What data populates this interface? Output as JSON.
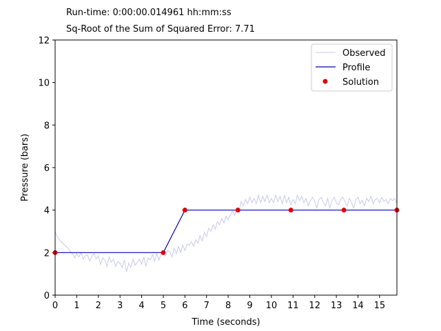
{
  "header": {
    "runtime": "Run-time: 0:00:00.014961 hh:mm:ss",
    "error": "Sq-Root of the Sum of Squared Error: 7.71"
  },
  "chart_data": {
    "type": "line",
    "xlabel": "Time (seconds)",
    "ylabel": "Pressure (bars)",
    "xlim": [
      0,
      15.8
    ],
    "ylim": [
      0,
      12
    ],
    "xticks": [
      0,
      1,
      2,
      3,
      4,
      5,
      6,
      7,
      8,
      9,
      10,
      11,
      12,
      13,
      14,
      15
    ],
    "yticks": [
      0,
      2,
      4,
      6,
      8,
      10,
      12
    ],
    "grid": false,
    "legend_position": "top-right",
    "series": [
      {
        "name": "Observed",
        "style": "line",
        "color": "#c8c8f0",
        "x": [
          0,
          0.1,
          0.2,
          0.3,
          0.4,
          0.5,
          0.6,
          0.7,
          0.8,
          0.9,
          1.0,
          1.1,
          1.2,
          1.3,
          1.4,
          1.5,
          1.6,
          1.7,
          1.8,
          1.9,
          2.0,
          2.1,
          2.2,
          2.3,
          2.4,
          2.5,
          2.6,
          2.7,
          2.8,
          2.9,
          3.0,
          3.1,
          3.2,
          3.3,
          3.4,
          3.5,
          3.6,
          3.7,
          3.8,
          3.9,
          4.0,
          4.1,
          4.2,
          4.3,
          4.4,
          4.5,
          4.6,
          4.7,
          4.8,
          4.9,
          5.0,
          5.1,
          5.2,
          5.3,
          5.4,
          5.5,
          5.6,
          5.7,
          5.8,
          5.9,
          6.0,
          6.1,
          6.2,
          6.3,
          6.4,
          6.5,
          6.6,
          6.7,
          6.8,
          6.9,
          7.0,
          7.1,
          7.2,
          7.3,
          7.4,
          7.5,
          7.6,
          7.7,
          7.8,
          7.9,
          8.0,
          8.1,
          8.2,
          8.3,
          8.4,
          8.5,
          8.6,
          8.7,
          8.8,
          8.9,
          9.0,
          9.1,
          9.2,
          9.3,
          9.4,
          9.5,
          9.6,
          9.7,
          9.8,
          9.9,
          10.0,
          10.1,
          10.2,
          10.3,
          10.4,
          10.5,
          10.6,
          10.7,
          10.8,
          10.9,
          11.0,
          11.1,
          11.2,
          11.3,
          11.4,
          11.5,
          11.6,
          11.7,
          11.8,
          11.9,
          12.0,
          12.1,
          12.2,
          12.3,
          12.4,
          12.5,
          12.6,
          12.7,
          12.8,
          12.9,
          13.0,
          13.1,
          13.2,
          13.3,
          13.4,
          13.5,
          13.6,
          13.7,
          13.8,
          13.9,
          14.0,
          14.1,
          14.2,
          14.3,
          14.4,
          14.5,
          14.6,
          14.7,
          14.8,
          14.9,
          15.0,
          15.1,
          15.2,
          15.3,
          15.4,
          15.5,
          15.6,
          15.7,
          15.8
        ],
        "y": [
          3.0,
          2.75,
          2.6,
          2.5,
          2.4,
          2.3,
          2.2,
          2.05,
          1.95,
          1.75,
          1.95,
          1.8,
          2.0,
          1.7,
          1.85,
          1.9,
          1.6,
          1.85,
          1.95,
          1.7,
          1.85,
          1.45,
          1.75,
          1.65,
          1.35,
          1.8,
          1.55,
          1.7,
          1.35,
          1.6,
          1.5,
          1.3,
          1.65,
          1.1,
          1.5,
          1.3,
          1.7,
          1.4,
          1.55,
          1.7,
          1.45,
          1.8,
          1.35,
          1.75,
          1.65,
          1.9,
          1.6,
          1.95,
          1.65,
          1.95,
          2.0,
          1.85,
          2.1,
          2.05,
          1.8,
          2.2,
          1.95,
          2.3,
          2.0,
          2.35,
          2.1,
          2.4,
          2.35,
          2.5,
          2.3,
          2.6,
          2.45,
          2.8,
          2.55,
          2.95,
          2.75,
          3.15,
          3.0,
          3.3,
          3.1,
          3.45,
          3.3,
          3.6,
          3.4,
          3.7,
          3.55,
          3.75,
          3.95,
          3.75,
          4.1,
          3.95,
          4.4,
          4.2,
          4.5,
          4.3,
          4.6,
          4.35,
          4.55,
          4.3,
          4.7,
          4.35,
          4.65,
          4.4,
          4.7,
          4.35,
          4.55,
          4.35,
          4.7,
          4.4,
          4.65,
          4.3,
          4.7,
          4.35,
          4.6,
          4.25,
          4.5,
          4.3,
          4.7,
          4.45,
          4.65,
          4.35,
          4.55,
          4.2,
          4.45,
          4.6,
          4.4,
          4.1,
          4.5,
          4.6,
          4.35,
          4.2,
          4.55,
          4.1,
          4.45,
          4.6,
          4.35,
          4.25,
          4.5,
          4.6,
          4.4,
          4.2,
          4.55,
          4.35,
          4.1,
          4.5,
          4.6,
          4.3,
          4.45,
          4.2,
          4.55,
          4.4,
          4.65,
          4.3,
          4.5,
          4.55,
          4.35,
          4.6,
          4.4,
          4.5,
          4.3,
          4.55,
          4.45,
          4.55,
          4.3
        ]
      },
      {
        "name": "Profile",
        "style": "line",
        "color": "#0000bb",
        "x": [
          0,
          5.0,
          6.0,
          8.45,
          10.9,
          13.35,
          15.8
        ],
        "y": [
          2,
          2,
          4,
          4,
          4,
          4,
          4
        ]
      },
      {
        "name": "Solution",
        "style": "scatter",
        "color": "#e00000",
        "x": [
          0,
          5.0,
          6.0,
          8.45,
          10.9,
          13.35,
          15.8
        ],
        "y": [
          2,
          2,
          4,
          4,
          4,
          4,
          4
        ]
      }
    ]
  }
}
